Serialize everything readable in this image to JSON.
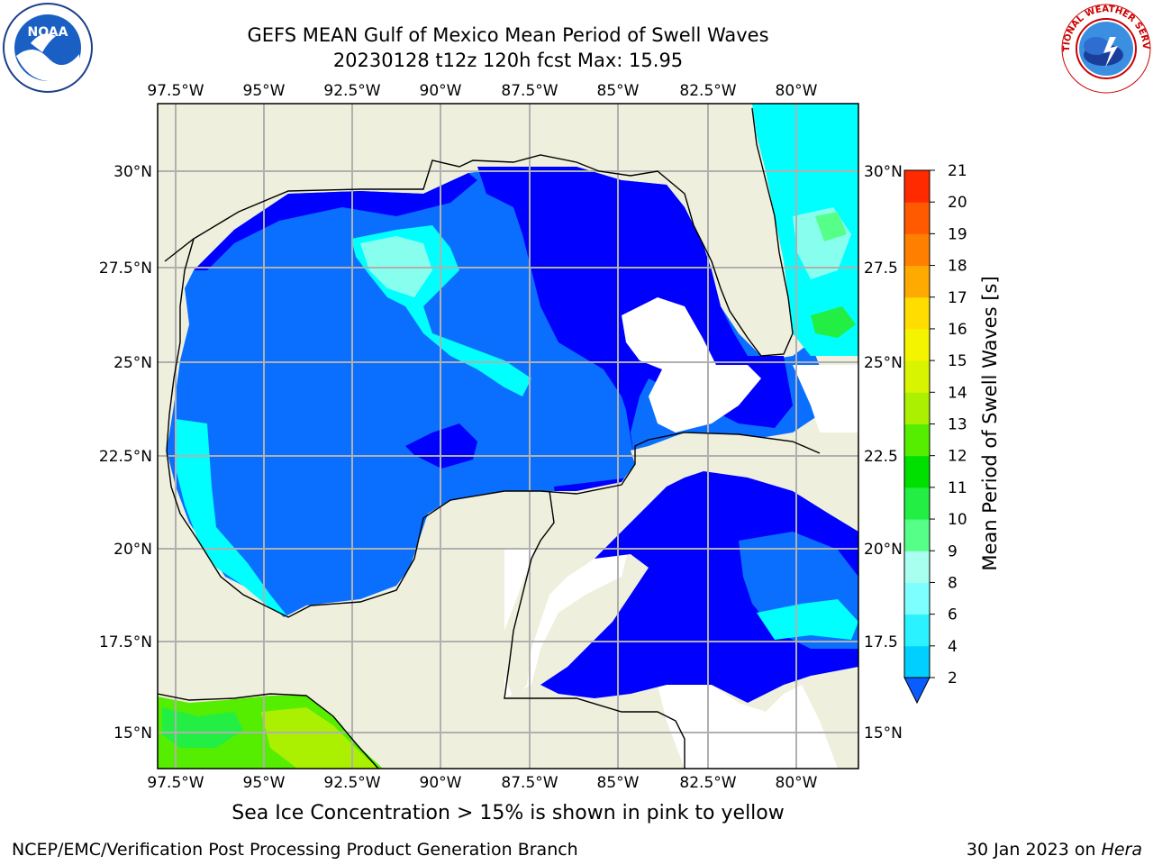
{
  "title_line1": "GEFS MEAN Gulf of Mexico Mean Period of Swell Waves",
  "title_line2": "20230128 t12z 120h fcst   Max: 15.95",
  "lon_labels": [
    "97.5°W",
    "95°W",
    "92.5°W",
    "90°W",
    "87.5°W",
    "85°W",
    "82.5°W",
    "80°W"
  ],
  "lat_labels_left": [
    "30°N",
    "27.5°N",
    "25°N",
    "22.5°N",
    "20°N",
    "17.5°N",
    "15°N"
  ],
  "lat_labels_right": [
    "30°N",
    "27.5",
    "25°N",
    "22.5",
    "20°N",
    "17.5",
    "15°N"
  ],
  "colorbar": {
    "label": "Mean Period of Swell Waves [s]",
    "ticks": [
      "2",
      "4",
      "6",
      "8",
      "9",
      "10",
      "11",
      "12",
      "13",
      "14",
      "15",
      "16",
      "17",
      "18",
      "19",
      "20",
      "21"
    ],
    "colors": [
      "#0a5cff",
      "#00cfff",
      "#2af2ff",
      "#7dffff",
      "#a8fff0",
      "#55ff88",
      "#22ee44",
      "#00e000",
      "#55ee00",
      "#aaf000",
      "#d8f400",
      "#f4f400",
      "#ffdd00",
      "#ffaa00",
      "#ff8000",
      "#ff5a00",
      "#ff2a00",
      "#ff0000"
    ]
  },
  "colors": {
    "land": "#efefdd",
    "water_deep": "#0000ff",
    "water_mid": "#0a6fff",
    "water_light": "#00ffff",
    "water_pale": "#88ffee",
    "grid": "#b0b0b0"
  },
  "footer_note": "Sea Ice Concentration > 15% is shown in pink to yellow",
  "footer_credit": "NCEP/EMC/Verification Post Processing Product Generation Branch",
  "footer_date": "30 Jan 2023 on",
  "footer_machine": "Hera",
  "logos": {
    "noaa_text": "NOAA",
    "nws_text": "NATIONAL WEATHER SERVICE"
  }
}
